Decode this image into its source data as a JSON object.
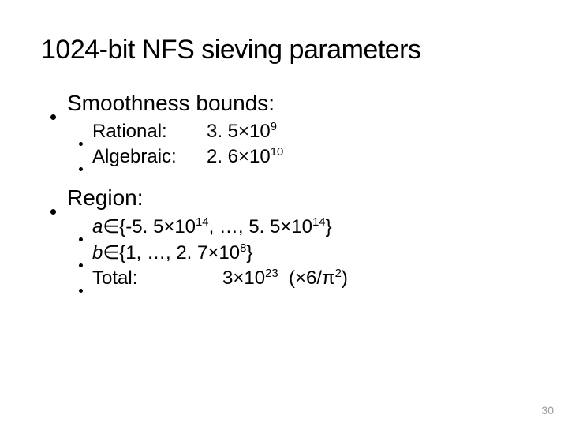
{
  "title": "1024-bit NFS sieving parameters",
  "sections": [
    {
      "heading": "Smoothness bounds:",
      "items": [
        {
          "label": "Rational:",
          "base": "3. 5",
          "exp": "9"
        },
        {
          "label": "Algebraic:",
          "base": "2. 6",
          "exp": "10"
        }
      ]
    },
    {
      "heading": "Region:",
      "range_a": {
        "var": "a",
        "low_base": "-5. 5",
        "low_exp": "14",
        "high_base": "5. 5",
        "high_exp": "14"
      },
      "range_b": {
        "var": "b",
        "low": "1",
        "high_base": "2. 7",
        "high_exp": "8"
      },
      "total": {
        "label": "Total:",
        "base": "3",
        "exp": "23",
        "factor_num": "6",
        "factor_den_exp": "2"
      }
    }
  ],
  "page_number": "30",
  "glyphs": {
    "times": "×",
    "elem": "∈",
    "pi": "π",
    "ellipsis": "…"
  },
  "colors": {
    "text": "#000000",
    "bg": "#ffffff",
    "pagenum": "#9a9a9a"
  }
}
